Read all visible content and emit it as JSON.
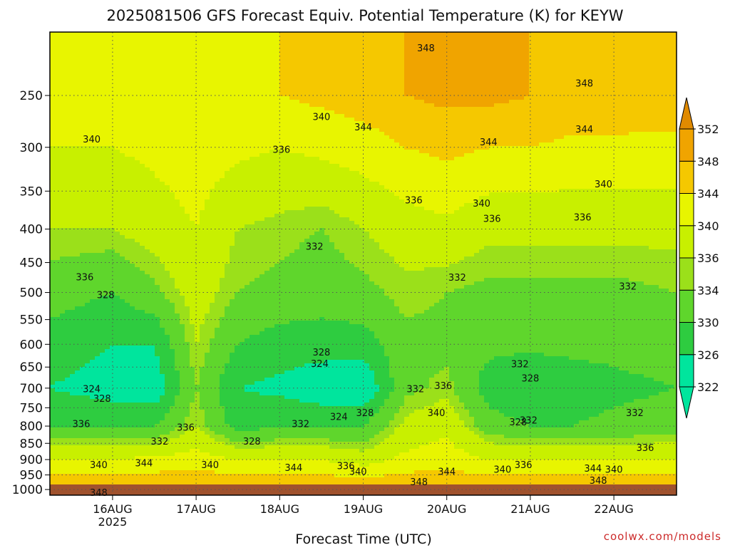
{
  "chart_data": {
    "type": "heatmap",
    "title": "2025081506 GFS Forecast Equiv. Potential Temperature (K) for KEYW",
    "xlabel": "Forecast Time (UTC)",
    "ylabel": "",
    "x_ticks": [
      {
        "label": "16AUG",
        "sublabel": "2025",
        "value": "2025-08-16T00:00Z"
      },
      {
        "label": "17AUG",
        "sublabel": "",
        "value": "2025-08-17T00:00Z"
      },
      {
        "label": "18AUG",
        "sublabel": "",
        "value": "2025-08-18T00:00Z"
      },
      {
        "label": "19AUG",
        "sublabel": "",
        "value": "2025-08-19T00:00Z"
      },
      {
        "label": "20AUG",
        "sublabel": "",
        "value": "2025-08-20T00:00Z"
      },
      {
        "label": "21AUG",
        "sublabel": "",
        "value": "2025-08-21T00:00Z"
      },
      {
        "label": "22AUG",
        "sublabel": "",
        "value": "2025-08-22T00:00Z"
      }
    ],
    "xlim": [
      "2025-08-15T06:00Z",
      "2025-08-22T18:00Z"
    ],
    "y_scale": "log",
    "y_inverted": true,
    "ylim": [
      1020,
      200
    ],
    "y_ticks": [
      250,
      300,
      350,
      400,
      450,
      500,
      550,
      600,
      650,
      700,
      750,
      800,
      850,
      900,
      950,
      1000
    ],
    "grid": "dotted",
    "colorbar": {
      "levels": [
        322,
        326,
        330,
        334,
        336,
        340,
        344,
        348,
        352
      ],
      "colors": [
        "#00e59d",
        "#2ecc40",
        "#5fd62c",
        "#9be01a",
        "#c8f000",
        "#e8f500",
        "#f5c800",
        "#f0a400",
        "#e08a00"
      ],
      "under_color": "#00e59d",
      "over_color": "#e08a00"
    },
    "ground_color": "#a0522d",
    "profiles": [
      {
        "x": "2025-08-15T06:00Z",
        "theta_e": [
          {
            "p": 250,
            "v": 342
          },
          {
            "p": 300,
            "v": 340
          },
          {
            "p": 400,
            "v": 336
          },
          {
            "p": 500,
            "v": 332
          },
          {
            "p": 600,
            "v": 328
          },
          {
            "p": 700,
            "v": 326
          },
          {
            "p": 800,
            "v": 330
          },
          {
            "p": 900,
            "v": 340
          },
          {
            "p": 1000,
            "v": 348
          }
        ]
      },
      {
        "x": "2025-08-16T00:00Z",
        "theta_e": [
          {
            "p": 250,
            "v": 342
          },
          {
            "p": 300,
            "v": 340
          },
          {
            "p": 400,
            "v": 336
          },
          {
            "p": 500,
            "v": 330
          },
          {
            "p": 600,
            "v": 326
          },
          {
            "p": 700,
            "v": 324
          },
          {
            "p": 800,
            "v": 330
          },
          {
            "p": 900,
            "v": 340
          },
          {
            "p": 1000,
            "v": 348
          }
        ]
      },
      {
        "x": "2025-08-16T12:00Z",
        "theta_e": [
          {
            "p": 250,
            "v": 343
          },
          {
            "p": 300,
            "v": 341
          },
          {
            "p": 400,
            "v": 338
          },
          {
            "p": 500,
            "v": 333
          },
          {
            "p": 600,
            "v": 326
          },
          {
            "p": 700,
            "v": 323
          },
          {
            "p": 800,
            "v": 330
          },
          {
            "p": 900,
            "v": 341
          },
          {
            "p": 1000,
            "v": 348
          }
        ]
      },
      {
        "x": "2025-08-17T00:00Z",
        "theta_e": [
          {
            "p": 250,
            "v": 343
          },
          {
            "p": 300,
            "v": 342
          },
          {
            "p": 400,
            "v": 340
          },
          {
            "p": 500,
            "v": 338
          },
          {
            "p": 600,
            "v": 336
          },
          {
            "p": 700,
            "v": 334
          },
          {
            "p": 800,
            "v": 336
          },
          {
            "p": 900,
            "v": 342
          },
          {
            "p": 1000,
            "v": 348
          }
        ]
      },
      {
        "x": "2025-08-17T12:00Z",
        "theta_e": [
          {
            "p": 250,
            "v": 343
          },
          {
            "p": 300,
            "v": 341
          },
          {
            "p": 400,
            "v": 336
          },
          {
            "p": 500,
            "v": 334
          },
          {
            "p": 600,
            "v": 330
          },
          {
            "p": 700,
            "v": 326
          },
          {
            "p": 800,
            "v": 328
          },
          {
            "p": 900,
            "v": 340
          },
          {
            "p": 1000,
            "v": 348
          }
        ]
      },
      {
        "x": "2025-08-18T00:00Z",
        "theta_e": [
          {
            "p": 250,
            "v": 344
          },
          {
            "p": 300,
            "v": 340
          },
          {
            "p": 400,
            "v": 335
          },
          {
            "p": 500,
            "v": 333
          },
          {
            "p": 600,
            "v": 328
          },
          {
            "p": 700,
            "v": 325
          },
          {
            "p": 800,
            "v": 330
          },
          {
            "p": 900,
            "v": 340
          },
          {
            "p": 1000,
            "v": 348
          }
        ]
      },
      {
        "x": "2025-08-18T12:00Z",
        "theta_e": [
          {
            "p": 250,
            "v": 345
          },
          {
            "p": 300,
            "v": 341
          },
          {
            "p": 400,
            "v": 334
          },
          {
            "p": 500,
            "v": 332
          },
          {
            "p": 600,
            "v": 328
          },
          {
            "p": 700,
            "v": 323
          },
          {
            "p": 800,
            "v": 330
          },
          {
            "p": 900,
            "v": 340
          },
          {
            "p": 1000,
            "v": 348
          }
        ]
      },
      {
        "x": "2025-08-19T00:00Z",
        "theta_e": [
          {
            "p": 250,
            "v": 346
          },
          {
            "p": 300,
            "v": 342
          },
          {
            "p": 400,
            "v": 336
          },
          {
            "p": 500,
            "v": 333
          },
          {
            "p": 600,
            "v": 328
          },
          {
            "p": 700,
            "v": 322
          },
          {
            "p": 800,
            "v": 330
          },
          {
            "p": 900,
            "v": 338
          },
          {
            "p": 1000,
            "v": 348
          }
        ]
      },
      {
        "x": "2025-08-19T12:00Z",
        "theta_e": [
          {
            "p": 250,
            "v": 348
          },
          {
            "p": 300,
            "v": 344
          },
          {
            "p": 400,
            "v": 338
          },
          {
            "p": 500,
            "v": 335
          },
          {
            "p": 600,
            "v": 333
          },
          {
            "p": 700,
            "v": 333
          },
          {
            "p": 800,
            "v": 337
          },
          {
            "p": 900,
            "v": 341
          },
          {
            "p": 1000,
            "v": 348
          }
        ]
      },
      {
        "x": "2025-08-20T00:00Z",
        "theta_e": [
          {
            "p": 250,
            "v": 349
          },
          {
            "p": 300,
            "v": 345
          },
          {
            "p": 400,
            "v": 339
          },
          {
            "p": 500,
            "v": 334
          },
          {
            "p": 600,
            "v": 333
          },
          {
            "p": 700,
            "v": 335
          },
          {
            "p": 800,
            "v": 339
          },
          {
            "p": 900,
            "v": 342
          },
          {
            "p": 1000,
            "v": 348
          }
        ]
      },
      {
        "x": "2025-08-20T12:00Z",
        "theta_e": [
          {
            "p": 250,
            "v": 349
          },
          {
            "p": 300,
            "v": 344
          },
          {
            "p": 400,
            "v": 337
          },
          {
            "p": 500,
            "v": 333
          },
          {
            "p": 600,
            "v": 331
          },
          {
            "p": 700,
            "v": 328
          },
          {
            "p": 800,
            "v": 332
          },
          {
            "p": 900,
            "v": 340
          },
          {
            "p": 1000,
            "v": 348
          }
        ]
      },
      {
        "x": "2025-08-21T00:00Z",
        "theta_e": [
          {
            "p": 250,
            "v": 348
          },
          {
            "p": 300,
            "v": 344
          },
          {
            "p": 400,
            "v": 337
          },
          {
            "p": 500,
            "v": 333
          },
          {
            "p": 600,
            "v": 331
          },
          {
            "p": 700,
            "v": 326
          },
          {
            "p": 800,
            "v": 330
          },
          {
            "p": 900,
            "v": 340
          },
          {
            "p": 1000,
            "v": 348
          }
        ]
      },
      {
        "x": "2025-08-21T12:00Z",
        "theta_e": [
          {
            "p": 250,
            "v": 347
          },
          {
            "p": 300,
            "v": 343
          },
          {
            "p": 400,
            "v": 337
          },
          {
            "p": 500,
            "v": 333
          },
          {
            "p": 600,
            "v": 331
          },
          {
            "p": 700,
            "v": 328
          },
          {
            "p": 800,
            "v": 330
          },
          {
            "p": 900,
            "v": 340
          },
          {
            "p": 1000,
            "v": 348
          }
        ]
      },
      {
        "x": "2025-08-22T00:00Z",
        "theta_e": [
          {
            "p": 250,
            "v": 347
          },
          {
            "p": 300,
            "v": 343
          },
          {
            "p": 400,
            "v": 337
          },
          {
            "p": 500,
            "v": 333
          },
          {
            "p": 600,
            "v": 331
          },
          {
            "p": 700,
            "v": 329
          },
          {
            "p": 800,
            "v": 331
          },
          {
            "p": 900,
            "v": 340
          },
          {
            "p": 1000,
            "v": 348
          }
        ]
      },
      {
        "x": "2025-08-22T18:00Z",
        "theta_e": [
          {
            "p": 250,
            "v": 346
          },
          {
            "p": 300,
            "v": 343
          },
          {
            "p": 400,
            "v": 337
          },
          {
            "p": 500,
            "v": 334
          },
          {
            "p": 600,
            "v": 332
          },
          {
            "p": 700,
            "v": 330
          },
          {
            "p": 800,
            "v": 332
          },
          {
            "p": 900,
            "v": 340
          },
          {
            "p": 1000,
            "v": 348
          }
        ]
      }
    ],
    "contour_labels": [
      {
        "text": "348",
        "x": "2025-08-19T18:00Z",
        "p": 212
      },
      {
        "text": "348",
        "x": "2025-08-21T15:30Z",
        "p": 240
      },
      {
        "text": "340",
        "x": "2025-08-18T12:00Z",
        "p": 270
      },
      {
        "text": "344",
        "x": "2025-08-19T00:00Z",
        "p": 280
      },
      {
        "text": "344",
        "x": "2025-08-20T12:00Z",
        "p": 295
      },
      {
        "text": "344",
        "x": "2025-08-21T15:30Z",
        "p": 282
      },
      {
        "text": "340",
        "x": "2025-08-15T18:00Z",
        "p": 292
      },
      {
        "text": "336",
        "x": "2025-08-18T00:30Z",
        "p": 303
      },
      {
        "text": "336",
        "x": "2025-08-19T14:30Z",
        "p": 362
      },
      {
        "text": "340",
        "x": "2025-08-20T10:00Z",
        "p": 366
      },
      {
        "text": "336",
        "x": "2025-08-20T13:00Z",
        "p": 386
      },
      {
        "text": "340",
        "x": "2025-08-21T21:00Z",
        "p": 342
      },
      {
        "text": "336",
        "x": "2025-08-21T15:00Z",
        "p": 384
      },
      {
        "text": "332",
        "x": "2025-08-18T10:00Z",
        "p": 426
      },
      {
        "text": "332",
        "x": "2025-08-20T03:00Z",
        "p": 475
      },
      {
        "text": "332",
        "x": "2025-08-22T04:00Z",
        "p": 490
      },
      {
        "text": "336",
        "x": "2025-08-15T16:00Z",
        "p": 474
      },
      {
        "text": "328",
        "x": "2025-08-15T22:00Z",
        "p": 505
      },
      {
        "text": "328",
        "x": "2025-08-18T12:00Z",
        "p": 618
      },
      {
        "text": "324",
        "x": "2025-08-18T11:30Z",
        "p": 643
      },
      {
        "text": "332",
        "x": "2025-08-20T21:00Z",
        "p": 644
      },
      {
        "text": "328",
        "x": "2025-08-21T00:00Z",
        "p": 677
      },
      {
        "text": "324",
        "x": "2025-08-15T18:00Z",
        "p": 703
      },
      {
        "text": "328",
        "x": "2025-08-15T21:00Z",
        "p": 727
      },
      {
        "text": "332",
        "x": "2025-08-19T15:00Z",
        "p": 703
      },
      {
        "text": "336",
        "x": "2025-08-19T23:00Z",
        "p": 695
      },
      {
        "text": "324",
        "x": "2025-08-18T17:00Z",
        "p": 775
      },
      {
        "text": "328",
        "x": "2025-08-19T00:30Z",
        "p": 765
      },
      {
        "text": "340",
        "x": "2025-08-19T21:00Z",
        "p": 765
      },
      {
        "text": "328",
        "x": "2025-08-20T20:30Z",
        "p": 790
      },
      {
        "text": "332",
        "x": "2025-08-20T23:30Z",
        "p": 785
      },
      {
        "text": "332",
        "x": "2025-08-22T06:00Z",
        "p": 765
      },
      {
        "text": "336",
        "x": "2025-08-15T15:00Z",
        "p": 795
      },
      {
        "text": "332",
        "x": "2025-08-16T13:30Z",
        "p": 845
      },
      {
        "text": "336",
        "x": "2025-08-16T21:00Z",
        "p": 805
      },
      {
        "text": "328",
        "x": "2025-08-17T16:00Z",
        "p": 845
      },
      {
        "text": "332",
        "x": "2025-08-18T06:00Z",
        "p": 795
      },
      {
        "text": "336",
        "x": "2025-08-22T09:00Z",
        "p": 865
      },
      {
        "text": "340",
        "x": "2025-08-15T20:00Z",
        "p": 918
      },
      {
        "text": "344",
        "x": "2025-08-16T09:00Z",
        "p": 912
      },
      {
        "text": "340",
        "x": "2025-08-17T04:00Z",
        "p": 918
      },
      {
        "text": "344",
        "x": "2025-08-18T04:00Z",
        "p": 927
      },
      {
        "text": "336",
        "x": "2025-08-18T19:00Z",
        "p": 922
      },
      {
        "text": "340",
        "x": "2025-08-18T22:30Z",
        "p": 940
      },
      {
        "text": "344",
        "x": "2025-08-20T00:00Z",
        "p": 940
      },
      {
        "text": "340",
        "x": "2025-08-20T16:00Z",
        "p": 933
      },
      {
        "text": "336",
        "x": "2025-08-20T22:00Z",
        "p": 918
      },
      {
        "text": "344",
        "x": "2025-08-21T18:00Z",
        "p": 930
      },
      {
        "text": "340",
        "x": "2025-08-22T00:00Z",
        "p": 933
      },
      {
        "text": "348",
        "x": "2025-08-19T16:00Z",
        "p": 975
      },
      {
        "text": "348",
        "x": "2025-08-21T19:30Z",
        "p": 970
      },
      {
        "text": "348",
        "x": "2025-08-15T20:00Z",
        "p": 1012
      }
    ]
  },
  "footer": {
    "credit": "coolwx.com/models"
  },
  "colors": {
    "credit": "#cc2a2a",
    "frame": "#000000",
    "grid": "#555555"
  }
}
